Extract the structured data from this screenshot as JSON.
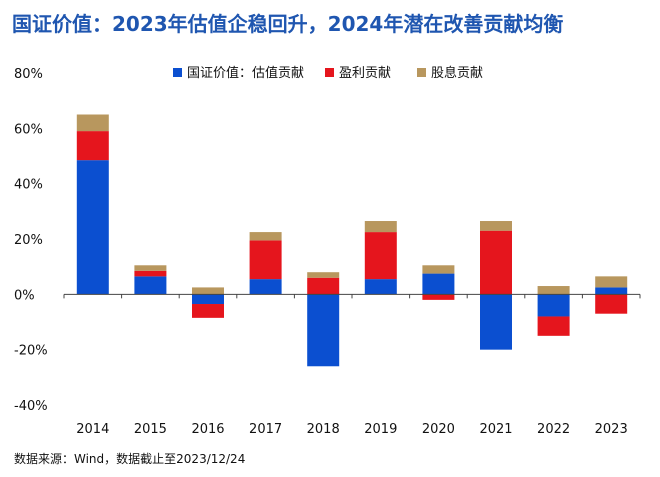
{
  "title": "国证价值：2023年估值企稳回升，2024年潜在改善贡献均衡",
  "source": "数据来源：Wind，数据截止至2023/12/24",
  "chart_data": {
    "type": "bar",
    "stacked": true,
    "categories": [
      "2014",
      "2015",
      "2016",
      "2017",
      "2018",
      "2019",
      "2020",
      "2021",
      "2022",
      "2023"
    ],
    "series": [
      {
        "name": "国证价值：估值贡献",
        "color": "#0b4fd0",
        "values": [
          48.5,
          6.5,
          -3.5,
          5.5,
          -26,
          5.5,
          7.5,
          -20,
          -8,
          2.5
        ]
      },
      {
        "name": "盈利贡献",
        "color": "#e5151d",
        "values": [
          10.5,
          2,
          -5,
          14,
          6,
          17,
          -2,
          23,
          -7,
          -7
        ]
      },
      {
        "name": "股息贡献",
        "color": "#b8975e",
        "values": [
          6,
          2,
          2.5,
          3,
          2,
          4,
          3,
          3.5,
          3,
          4
        ]
      }
    ],
    "ylim": [
      -40,
      80
    ],
    "yticks": [
      -40,
      -20,
      0,
      20,
      40,
      60,
      80
    ],
    "ytick_labels": [
      "-40%",
      "-20%",
      "0%",
      "20%",
      "40%",
      "60%",
      "80%"
    ],
    "legend_position": "top",
    "grid": false
  }
}
